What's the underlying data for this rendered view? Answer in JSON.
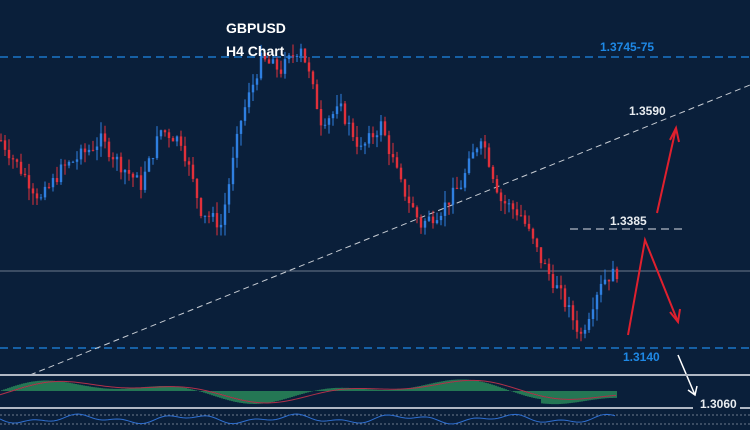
{
  "chart_data": {
    "type": "candlestick",
    "title": "GBPUSD",
    "subtitle": "H4 Chart",
    "closes": [
      1.3572,
      1.351,
      1.3448,
      1.351,
      1.3541,
      1.3572,
      1.352,
      1.3479,
      1.3593,
      1.3572,
      1.3427,
      1.3396,
      1.3614,
      1.3739,
      1.3718,
      1.377,
      1.3614,
      1.3635,
      1.3552,
      1.3604,
      1.3479,
      1.3396,
      1.3427,
      1.3479,
      1.3583,
      1.3448,
      1.3417,
      1.3323,
      1.325,
      1.3167,
      1.3281,
      1.3302
    ],
    "levels": [
      {
        "label": "1.3745-75",
        "price": 1.3745,
        "style": "dashed",
        "color": "#1e88e5"
      },
      {
        "label": "1.3140",
        "price": 1.314,
        "style": "dashed",
        "color": "#1e88e5"
      },
      {
        "label": "1.3385",
        "price": 1.3385,
        "style": "dashed-short",
        "color": "#b0b8c4"
      },
      {
        "label": "1.3590",
        "price": 1.359,
        "style": "trendline",
        "color": "#c8cdd4"
      },
      {
        "label": "1.3060",
        "price": 1.306,
        "style": "solid",
        "color": "#b0b8c4"
      }
    ],
    "indicator": "MACD histogram (green) with signal line",
    "colors": {
      "bull": "#2f7fe0",
      "bear": "#e0303a",
      "arrow": "#e0202e",
      "histogram": "#3ecf6e",
      "background": "#0a1f3a"
    }
  }
}
